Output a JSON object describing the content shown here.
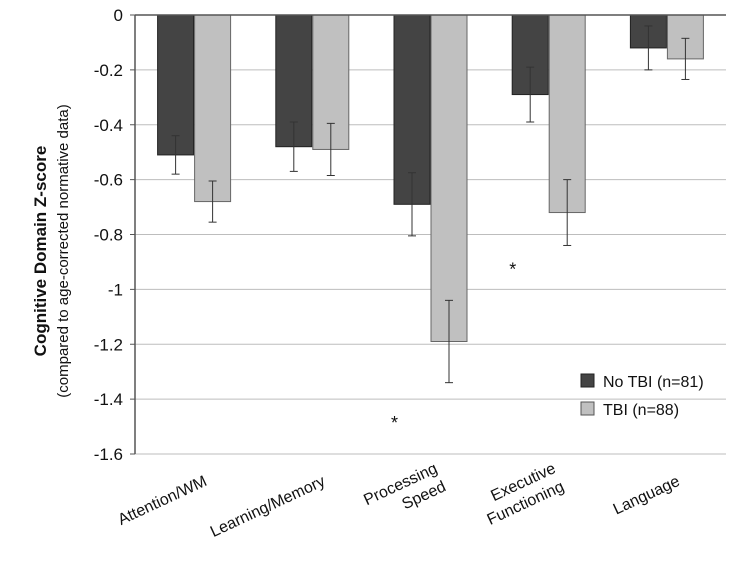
{
  "chart_data": {
    "type": "bar",
    "ylabel": "Cognitive Domain Z-score",
    "ylabel_sub": "(compared to age-corrected normative data)",
    "ylim": [
      -1.6,
      0
    ],
    "yticks": [
      "0",
      "-0.2",
      "-0.4",
      "-0.6",
      "-0.8",
      "-1",
      "-1.2",
      "-1.4",
      "-1.6"
    ],
    "ytick_values": [
      0,
      -0.2,
      -0.4,
      -0.6,
      -0.8,
      -1.0,
      -1.2,
      -1.4,
      -1.6
    ],
    "grid": true,
    "legend_position": "bottom-right",
    "categories": [
      [
        "Attention/WM"
      ],
      [
        "Learning/Memory"
      ],
      [
        "Processing",
        "Speed"
      ],
      [
        "Executive",
        "Functioning"
      ],
      [
        "Language"
      ]
    ],
    "series": [
      {
        "name": "No TBI (n=81)",
        "color": "#444444",
        "values": [
          -0.51,
          -0.48,
          -0.69,
          -0.29,
          -0.12
        ],
        "errors": [
          0.07,
          0.09,
          0.115,
          0.1,
          0.08
        ]
      },
      {
        "name": "TBI (n=88)",
        "color": "#c0c0c0",
        "values": [
          -0.68,
          -0.49,
          -1.19,
          -0.72,
          -0.16
        ],
        "errors": [
          0.075,
          0.095,
          0.15,
          0.12,
          0.075
        ]
      }
    ],
    "annotations": [
      {
        "text": "*",
        "category_index": 2,
        "value": -1.48
      },
      {
        "text": "*",
        "category_index": 3,
        "value": -0.92
      }
    ]
  }
}
